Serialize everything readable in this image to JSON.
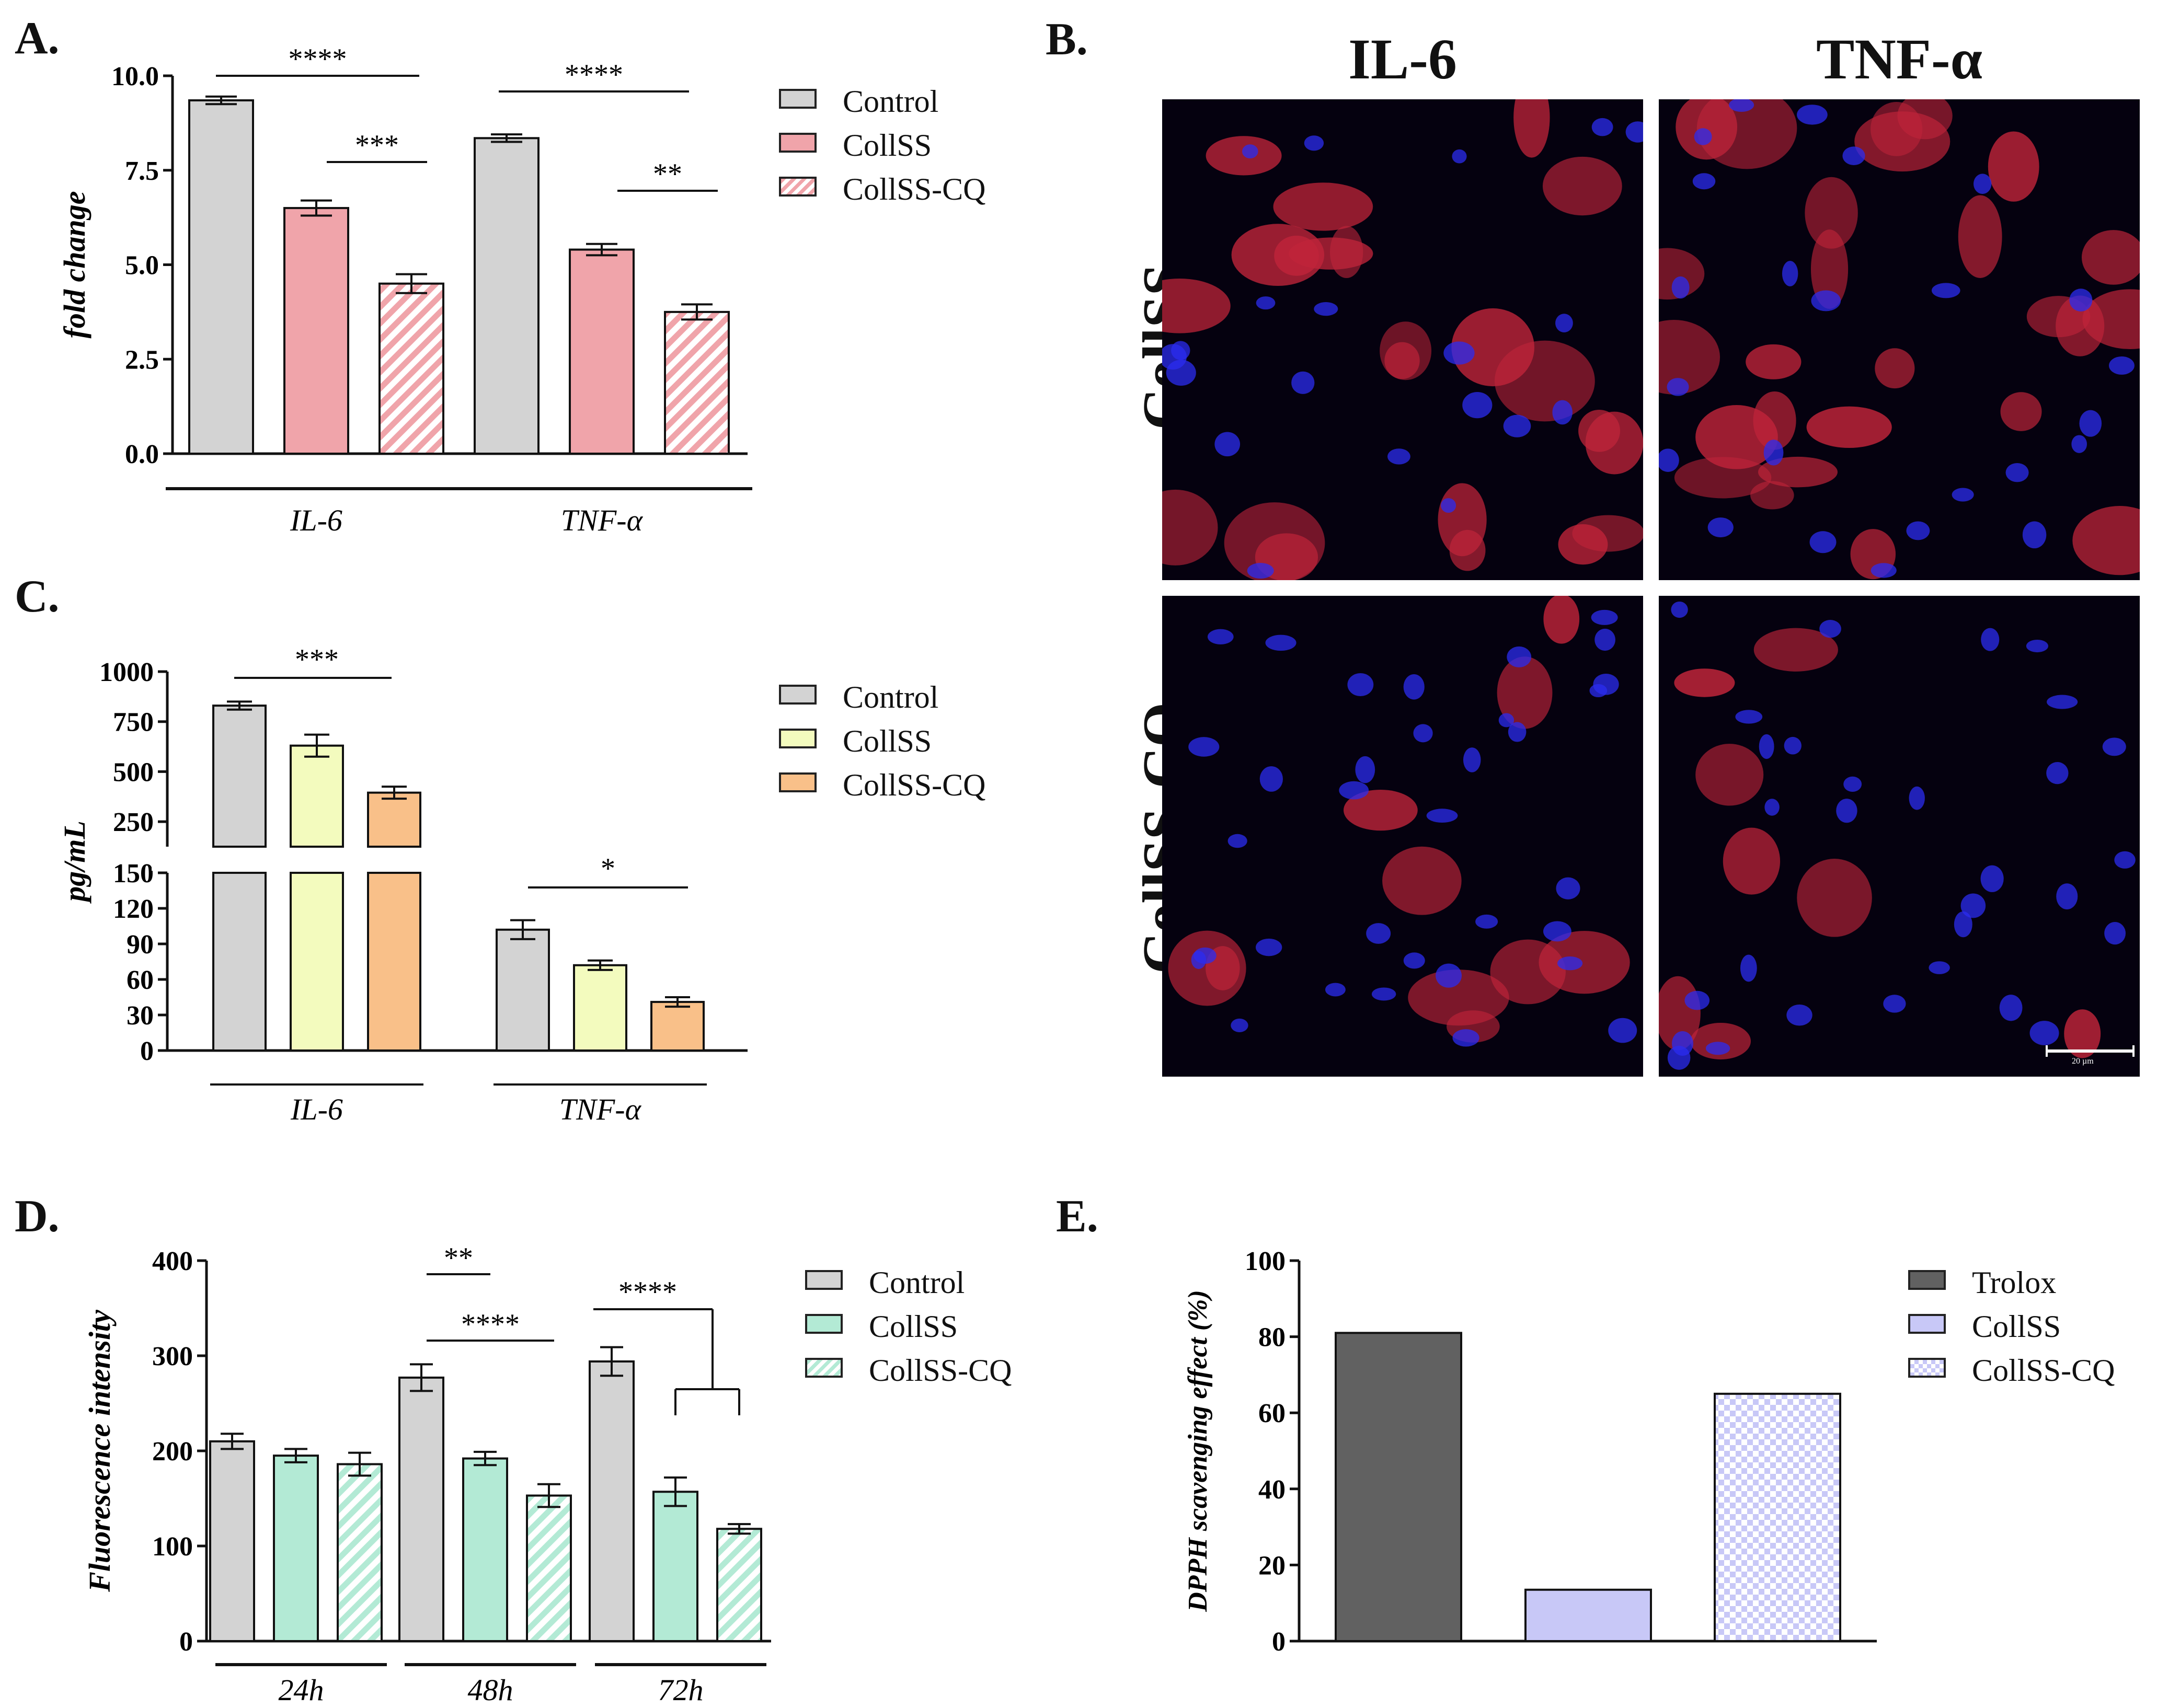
{
  "panels": {
    "A": {
      "letter": "A."
    },
    "B": {
      "letter": "B."
    },
    "C": {
      "letter": "C."
    },
    "D": {
      "letter": "D."
    },
    "E": {
      "letter": "E."
    }
  },
  "chart_data": [
    {
      "id": "A",
      "type": "bar",
      "ylabel": "fold change",
      "ylim": [
        0,
        10
      ],
      "yticks": [
        "0.0",
        "2.5",
        "5.0",
        "7.5",
        "10.0"
      ],
      "yticks_values": [
        0,
        2.5,
        5.0,
        7.5,
        10.0
      ],
      "groups": [
        "IL-6",
        "TNF-α"
      ],
      "series": [
        {
          "name": "Control",
          "values": [
            9.35,
            8.35
          ],
          "errors": [
            0.1,
            0.1
          ],
          "color": "#d3d3d3",
          "pattern": "solid"
        },
        {
          "name": "CollSS",
          "values": [
            6.5,
            5.4
          ],
          "errors": [
            0.2,
            0.15
          ],
          "color": "#f0a4aa",
          "pattern": "solid"
        },
        {
          "name": "CollSS-CQ",
          "values": [
            4.5,
            3.75
          ],
          "errors": [
            0.25,
            0.2
          ],
          "color": "#f0a4aa",
          "pattern": "stripes"
        }
      ],
      "significance": [
        {
          "label": "****",
          "from": [
            0,
            0
          ],
          "to": [
            0,
            2
          ],
          "y": 10.5
        },
        {
          "label": "***",
          "from": [
            0,
            1
          ],
          "to": [
            0,
            2
          ],
          "y": 7.7
        },
        {
          "label": "****",
          "from": [
            1,
            0
          ],
          "to": [
            1,
            2
          ],
          "y": 9.6
        },
        {
          "label": "**",
          "from": [
            1,
            1
          ],
          "to": [
            1,
            2
          ],
          "y": 6.9
        }
      ],
      "legend": [
        "Control",
        "CollSS",
        "CollSS-CQ"
      ]
    },
    {
      "id": "C",
      "type": "bar",
      "ylabel": "pg/mL",
      "broken_axis": true,
      "upper_ylim": [
        125,
        1000
      ],
      "upper_yticks": [
        "250",
        "500",
        "750",
        "1000"
      ],
      "upper_yticks_values": [
        250,
        500,
        750,
        1000
      ],
      "lower_ylim": [
        0,
        150
      ],
      "lower_yticks": [
        "0",
        "30",
        "60",
        "90",
        "120",
        "150"
      ],
      "lower_yticks_values": [
        0,
        30,
        60,
        90,
        120,
        150
      ],
      "groups": [
        "IL-6",
        "TNF-α"
      ],
      "series": [
        {
          "name": "Control",
          "values": [
            830,
            102
          ],
          "errors": [
            20,
            8
          ],
          "color": "#d3d3d3"
        },
        {
          "name": "CollSS",
          "values": [
            630,
            72
          ],
          "errors": [
            55,
            4
          ],
          "color": "#f3fbbe"
        },
        {
          "name": "CollSS-CQ",
          "values": [
            395,
            41
          ],
          "errors": [
            30,
            4
          ],
          "color": "#f9c089"
        }
      ],
      "significance": [
        {
          "label": "***",
          "group": 0,
          "from": 0,
          "to": 2,
          "value": 940,
          "axis": "upper"
        },
        {
          "label": "*",
          "group": 1,
          "from": 0,
          "to": 2,
          "value": 140,
          "axis": "lower"
        }
      ],
      "legend": [
        "Control",
        "CollSS",
        "CollSS-CQ"
      ]
    },
    {
      "id": "D",
      "type": "bar",
      "ylabel": "Fluorescence intensity",
      "ylim": [
        0,
        400
      ],
      "yticks": [
        "0",
        "100",
        "200",
        "300",
        "400"
      ],
      "yticks_values": [
        0,
        100,
        200,
        300,
        400
      ],
      "groups": [
        "24h",
        "48h",
        "72h"
      ],
      "series": [
        {
          "name": "Control",
          "values": [
            210,
            277,
            294
          ],
          "errors": [
            8,
            14,
            15
          ],
          "color": "#d3d3d3",
          "pattern": "solid"
        },
        {
          "name": "CollSS",
          "values": [
            195,
            192,
            157
          ],
          "errors": [
            7,
            7,
            15
          ],
          "color": "#b3ead5",
          "pattern": "solid"
        },
        {
          "name": "CollSS-CQ",
          "values": [
            186,
            153,
            118
          ],
          "errors": [
            12,
            12,
            5
          ],
          "color": "#b3ead5",
          "pattern": "stripes"
        }
      ],
      "significance": [
        {
          "label": "**",
          "group": 1,
          "from": 0,
          "to": 1,
          "value": 383
        },
        {
          "label": "****",
          "group": 1,
          "from": 0,
          "to": 2,
          "value": 317
        },
        {
          "label": "****",
          "group": 2,
          "from": 0,
          "to": "bracket",
          "value": 347
        }
      ],
      "legend": [
        "Control",
        "CollSS",
        "CollSS-CQ"
      ]
    },
    {
      "id": "E",
      "type": "bar",
      "ylabel": "DPPH scavenging effect (%)",
      "ylim": [
        0,
        100
      ],
      "yticks": [
        "0",
        "20",
        "40",
        "60",
        "80",
        "100"
      ],
      "yticks_values": [
        0,
        20,
        40,
        60,
        80,
        100
      ],
      "categories": [
        "Trolox",
        "CollSS",
        "CollSS-CQ"
      ],
      "values": [
        81,
        13.5,
        65
      ],
      "colors": [
        "#616161",
        "#c8c8f7",
        "#c8c8f7"
      ],
      "patterns": [
        "solid",
        "solid",
        "checker"
      ],
      "legend": [
        "Trolox",
        "CollSS",
        "CollSS-CQ"
      ]
    }
  ],
  "microscopy": {
    "columns": [
      "IL-6",
      "TNF-α"
    ],
    "rows": [
      "CollSS",
      "CollSS-CQ"
    ],
    "scale_bar": "20 µm"
  }
}
